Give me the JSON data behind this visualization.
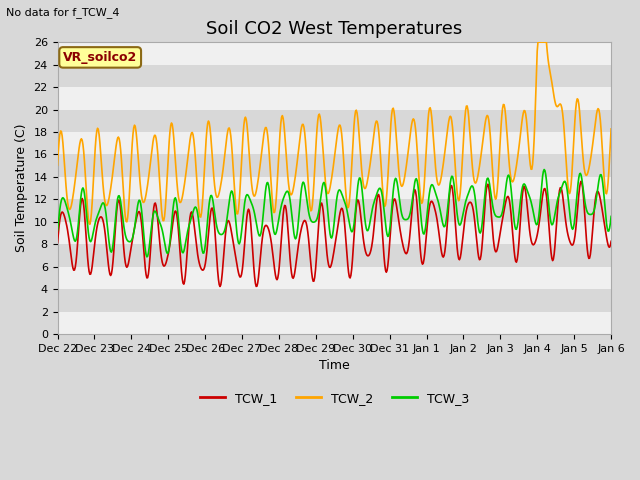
{
  "title": "Soil CO2 West Temperatures",
  "xlabel": "Time",
  "ylabel": "Soil Temperature (C)",
  "no_data_label": "No data for f_TCW_4",
  "legend_label": "VR_soilco2",
  "ylim": [
    0,
    26
  ],
  "yticks": [
    0,
    2,
    4,
    6,
    8,
    10,
    12,
    14,
    16,
    18,
    20,
    22,
    24,
    26
  ],
  "xtick_labels": [
    "Dec 22",
    "Dec 23",
    "Dec 24",
    "Dec 25",
    "Dec 26",
    "Dec 27",
    "Dec 28",
    "Dec 29",
    "Dec 30",
    "Dec 31",
    "Jan 1",
    "Jan 2",
    "Jan 3",
    "Jan 4",
    "Jan 5",
    "Jan 6"
  ],
  "series": {
    "TCW_1": {
      "color": "#cc0000",
      "linewidth": 1.2
    },
    "TCW_2": {
      "color": "#ffa500",
      "linewidth": 1.2
    },
    "TCW_3": {
      "color": "#00cc00",
      "linewidth": 1.2
    }
  },
  "bg_color": "#d8d8d8",
  "plot_bg_color": "#ffffff",
  "band_color_light": "#f0f0f0",
  "band_color_dark": "#d8d8d8",
  "title_fontsize": 13,
  "axis_fontsize": 9,
  "tick_fontsize": 8
}
